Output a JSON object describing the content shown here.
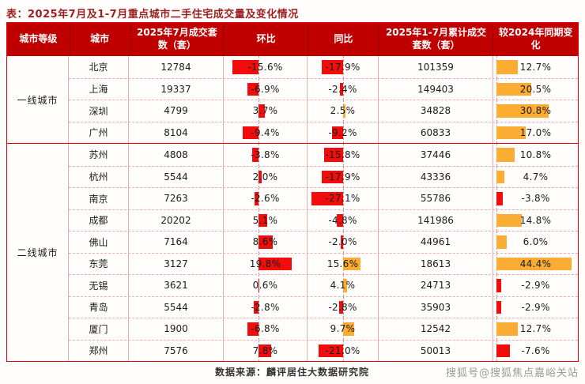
{
  "page": {
    "title": "表：2025年7月及1-7月重点城市二手住宅成交量及变化情况",
    "source_note": "数据来源：麟评居住大数据研究院",
    "watermark": "搜狐号@搜狐焦点嘉峪关站"
  },
  "colors": {
    "header_bg": "#C00000",
    "bar_red": "#F20D0D",
    "bar_orange": "#FBAC33",
    "table_border": "#E60000",
    "title_text": "#9C2022"
  },
  "table": {
    "columns": [
      "城市等级",
      "城市",
      "2025年7月成交套数（套）",
      "环比",
      "同比",
      "2025年1-7月累计成交套数（套）",
      "较2024年同期变化"
    ],
    "bar_scales": {
      "mom_max": 20,
      "yoy_max": 28,
      "vs_max": 45
    },
    "groups": [
      {
        "tier": "一线城市",
        "rows": [
          {
            "city": "北京",
            "jul": 12784,
            "mom": -15.6,
            "yoy": -17.9,
            "cum": 101359,
            "vs": 12.7
          },
          {
            "city": "上海",
            "jul": 19337,
            "mom": -6.9,
            "yoy": -2.4,
            "cum": 149403,
            "vs": 20.5
          },
          {
            "city": "深圳",
            "jul": 4799,
            "mom": 3.7,
            "yoy": 2.5,
            "cum": 34828,
            "vs": 30.8
          },
          {
            "city": "广州",
            "jul": 8104,
            "mom": -9.4,
            "yoy": -9.2,
            "cum": 60833,
            "vs": 17.0
          }
        ]
      },
      {
        "tier": "二线城市",
        "rows": [
          {
            "city": "苏州",
            "jul": 4808,
            "mom": -3.8,
            "yoy": -15.8,
            "cum": 37446,
            "vs": 10.8
          },
          {
            "city": "杭州",
            "jul": 5544,
            "mom": 2.0,
            "yoy": -17.9,
            "cum": 43336,
            "vs": 4.7
          },
          {
            "city": "南京",
            "jul": 7263,
            "mom": -2.6,
            "yoy": -27.1,
            "cum": 55786,
            "vs": -3.8
          },
          {
            "city": "成都",
            "jul": 20202,
            "mom": 5.1,
            "yoy": -4.8,
            "cum": 141986,
            "vs": 14.8
          },
          {
            "city": "佛山",
            "jul": 7164,
            "mom": 8.6,
            "yoy": -2.0,
            "cum": 44961,
            "vs": 6.0
          },
          {
            "city": "东莞",
            "jul": 3127,
            "mom": 19.8,
            "yoy": 15.6,
            "cum": 18613,
            "vs": 44.4
          },
          {
            "city": "无锡",
            "jul": 3621,
            "mom": 0.6,
            "yoy": 4.1,
            "cum": 24713,
            "vs": -2.9
          },
          {
            "city": "青岛",
            "jul": 5544,
            "mom": -2.8,
            "yoy": -2.8,
            "cum": 35903,
            "vs": -2.9
          },
          {
            "city": "厦门",
            "jul": 1900,
            "mom": -6.8,
            "yoy": 9.7,
            "cum": 12542,
            "vs": 12.7
          },
          {
            "city": "郑州",
            "jul": 7576,
            "mom": 7.8,
            "yoy": -21.0,
            "cum": 50013,
            "vs": -7.6
          }
        ]
      }
    ]
  },
  "chart_data": {
    "type": "table",
    "title": "表：2025年7月及1-7月重点城市二手住宅成交量及变化情况",
    "columns": [
      "城市等级",
      "城市",
      "2025年7月成交套数（套）",
      "环比",
      "同比",
      "2025年1-7月累计成交套数（套）",
      "较2024年同期变化"
    ],
    "rows": [
      [
        "一线城市",
        "北京",
        12784,
        "-15.6%",
        "-17.9%",
        101359,
        "12.7%"
      ],
      [
        "一线城市",
        "上海",
        19337,
        "-6.9%",
        "-2.4%",
        149403,
        "20.5%"
      ],
      [
        "一线城市",
        "深圳",
        4799,
        "3.7%",
        "2.5%",
        34828,
        "30.8%"
      ],
      [
        "一线城市",
        "广州",
        8104,
        "-9.4%",
        "-9.2%",
        60833,
        "17.0%"
      ],
      [
        "二线城市",
        "苏州",
        4808,
        "-3.8%",
        "-15.8%",
        37446,
        "10.8%"
      ],
      [
        "二线城市",
        "杭州",
        5544,
        "2.0%",
        "-17.9%",
        43336,
        "4.7%"
      ],
      [
        "二线城市",
        "南京",
        7263,
        "-2.6%",
        "-27.1%",
        55786,
        "-3.8%"
      ],
      [
        "二线城市",
        "成都",
        20202,
        "5.1%",
        "-4.8%",
        141986,
        "14.8%"
      ],
      [
        "二线城市",
        "佛山",
        7164,
        "8.6%",
        "-2.0%",
        44961,
        "6.0%"
      ],
      [
        "二线城市",
        "东莞",
        3127,
        "19.8%",
        "15.6%",
        18613,
        "44.4%"
      ],
      [
        "二线城市",
        "无锡",
        3621,
        "0.6%",
        "4.1%",
        24713,
        "-2.9%"
      ],
      [
        "二线城市",
        "青岛",
        5544,
        "-2.8%",
        "-2.8%",
        35903,
        "-2.9%"
      ],
      [
        "二线城市",
        "厦门",
        1900,
        "-6.8%",
        "9.7%",
        12542,
        "12.7%"
      ],
      [
        "二线城市",
        "郑州",
        7576,
        "7.8%",
        "-21.0%",
        50013,
        "-7.6%"
      ]
    ],
    "legend": "bars: 环比 red; 同比/较2024 negative red, positive orange",
    "bar_axis": "dashed baseline per bar column"
  }
}
